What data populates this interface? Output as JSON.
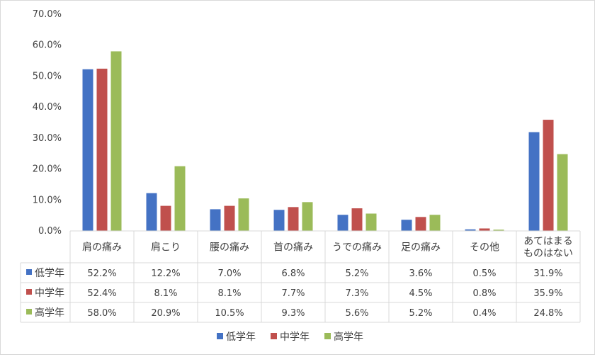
{
  "chart_data": {
    "type": "bar",
    "categories": [
      "肩の痛み",
      "肩こり",
      "腰の痛み",
      "首の痛み",
      "うでの痛み",
      "足の痛み",
      "その他",
      [
        "あてはまる",
        "ものはない"
      ]
    ],
    "series": [
      {
        "name": "低学年",
        "color": "#4472C4",
        "values": [
          52.2,
          12.2,
          7.0,
          6.8,
          5.2,
          3.6,
          0.5,
          31.9
        ],
        "labels": [
          "52.2%",
          "12.2%",
          "7.0%",
          "6.8%",
          "5.2%",
          "3.6%",
          "0.5%",
          "31.9%"
        ]
      },
      {
        "name": "中学年",
        "color": "#C0504D",
        "values": [
          52.4,
          8.1,
          8.1,
          7.7,
          7.3,
          4.5,
          0.8,
          35.9
        ],
        "labels": [
          "52.4%",
          "8.1%",
          "8.1%",
          "7.7%",
          "7.3%",
          "4.5%",
          "0.8%",
          "35.9%"
        ]
      },
      {
        "name": "高学年",
        "color": "#9BBB59",
        "values": [
          58.0,
          20.9,
          10.5,
          9.3,
          5.6,
          5.2,
          0.4,
          24.8
        ],
        "labels": [
          "58.0%",
          "20.9%",
          "10.5%",
          "9.3%",
          "5.6%",
          "5.2%",
          "0.4%",
          "24.8%"
        ]
      }
    ],
    "ylim": [
      0,
      70
    ],
    "yticks": [
      "0.0%",
      "10.0%",
      "20.0%",
      "30.0%",
      "40.0%",
      "50.0%",
      "60.0%",
      "70.0%"
    ],
    "grid": false,
    "legend": "bottom",
    "data_table": true
  }
}
